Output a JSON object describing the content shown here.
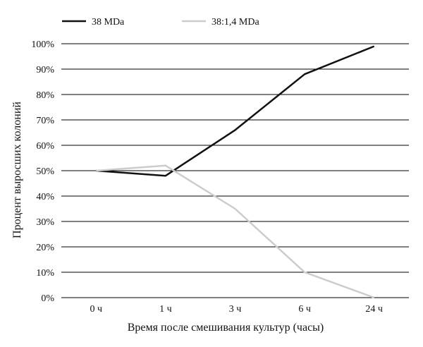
{
  "chart_data": {
    "type": "line",
    "title": "",
    "xlabel": "Время после смешивания культур (часы)",
    "ylabel": "Процент выросших колоний",
    "categories": [
      "0 ч",
      "1 ч",
      "3 ч",
      "6 ч",
      "24 ч"
    ],
    "ylim": [
      0,
      100
    ],
    "y_ticks": [
      "0%",
      "10%",
      "20%",
      "30%",
      "40%",
      "50%",
      "60%",
      "70%",
      "80%",
      "90%",
      "100%"
    ],
    "y_unit": "%",
    "grid": true,
    "legend_position": "top-left",
    "series": [
      {
        "name": "38 MDa",
        "color": "#111111",
        "values": [
          50,
          48,
          66,
          88,
          99
        ]
      },
      {
        "name": "38:1,4 MDa",
        "color": "#cccccc",
        "values": [
          50,
          52,
          35,
          10,
          0
        ]
      }
    ]
  }
}
